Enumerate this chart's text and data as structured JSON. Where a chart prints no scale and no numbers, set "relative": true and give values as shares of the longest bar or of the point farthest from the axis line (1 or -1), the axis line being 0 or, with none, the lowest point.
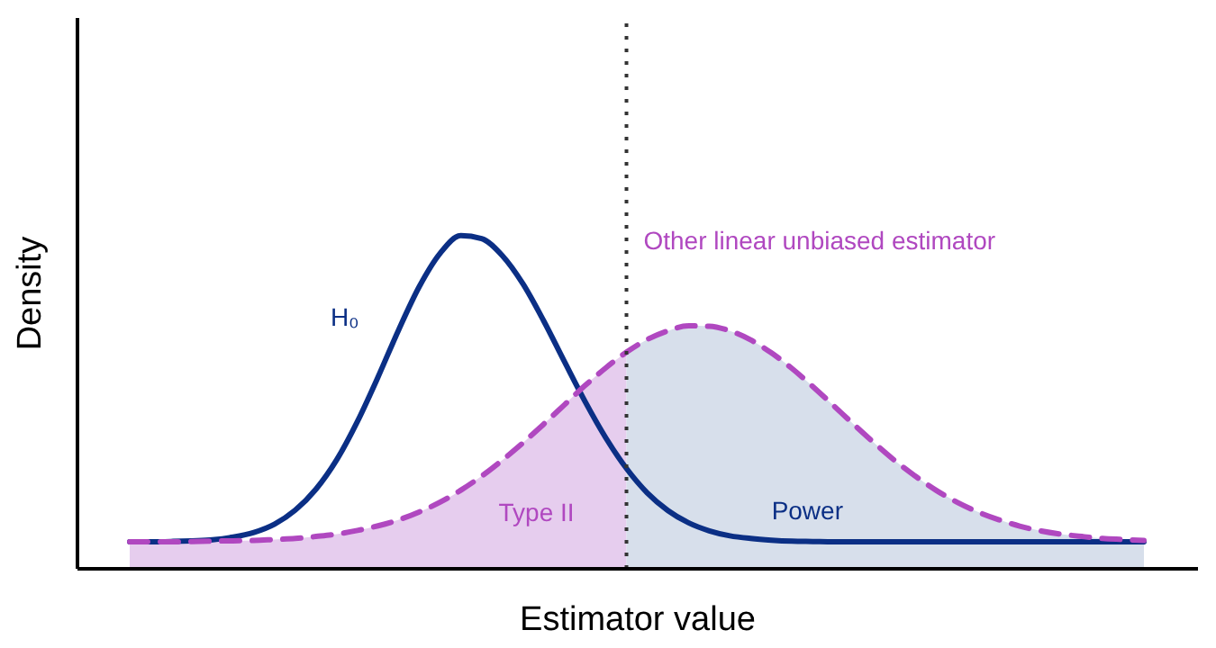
{
  "chart_data": {
    "type": "line",
    "xlabel": "Estimator value",
    "ylabel": "Density",
    "relative": true,
    "legend": false,
    "grid": false,
    "categories": [
      null,
      null,
      null,
      null,
      null,
      null,
      null,
      null,
      null,
      null,
      null,
      null,
      null,
      null,
      null,
      null,
      null,
      null,
      null,
      null,
      null,
      null,
      null,
      null,
      null,
      null,
      null,
      null,
      null,
      null,
      null,
      null,
      null,
      null,
      null,
      null,
      null,
      null,
      null,
      null,
      null,
      null,
      null,
      null,
      null,
      null,
      null,
      null,
      null,
      null
    ],
    "series": [
      {
        "name": "Type II",
        "type": "area",
        "color": "#e6cdee",
        "values": [
          0.081,
          0.081,
          0.081,
          0.082,
          0.083,
          0.084,
          0.085,
          0.088,
          0.091,
          0.097,
          0.104,
          0.115,
          0.129,
          0.147,
          0.171,
          0.2,
          0.236,
          0.278,
          0.326,
          0.378,
          0.434,
          0.492,
          0.55,
          0.603,
          0.65,
          null,
          null,
          null,
          null,
          null,
          null,
          null,
          null,
          null,
          null,
          null,
          null,
          null,
          null,
          null,
          null,
          null,
          null,
          null,
          null,
          null,
          null,
          null,
          null,
          null
        ]
      },
      {
        "name": "Power",
        "type": "area",
        "color": "#d7dfeb",
        "values": [
          null,
          null,
          null,
          null,
          null,
          null,
          null,
          null,
          null,
          null,
          null,
          null,
          null,
          null,
          null,
          null,
          null,
          null,
          null,
          null,
          null,
          null,
          null,
          null,
          0.65,
          0.688,
          0.714,
          0.729,
          0.728,
          0.714,
          0.687,
          0.648,
          0.601,
          0.547,
          0.49,
          0.432,
          0.376,
          0.323,
          0.276,
          0.234,
          0.199,
          0.17,
          0.147,
          0.128,
          0.114,
          0.104,
          0.097,
          0.091,
          0.088,
          0.085
        ]
      },
      {
        "name": "H₀",
        "color": "#0b2f85",
        "line_style": "solid",
        "values": [
          0.081,
          0.081,
          0.082,
          0.084,
          0.087,
          0.095,
          0.109,
          0.134,
          0.176,
          0.239,
          0.327,
          0.442,
          0.576,
          0.718,
          0.848,
          0.947,
          1,
          0.991,
          0.94,
          0.855,
          0.744,
          0.622,
          0.502,
          0.393,
          0.301,
          0.228,
          0.175,
          0.138,
          0.114,
          0.099,
          0.091,
          0.086,
          0.083,
          0.082,
          0.081,
          0.081,
          0.081,
          0.081,
          0.081,
          0.081,
          0.081,
          0.081,
          0.081,
          0.081,
          0.081,
          0.081,
          0.081,
          0.081,
          0.081,
          0.081
        ]
      },
      {
        "name": "Other linear unbiased estimator",
        "color": "#b048c0",
        "line_style": "dashed",
        "values": [
          0.081,
          0.081,
          0.081,
          0.082,
          0.083,
          0.084,
          0.085,
          0.088,
          0.091,
          0.097,
          0.104,
          0.115,
          0.129,
          0.147,
          0.171,
          0.2,
          0.236,
          0.278,
          0.326,
          0.378,
          0.434,
          0.492,
          0.55,
          0.603,
          0.65,
          0.688,
          0.714,
          0.729,
          0.728,
          0.714,
          0.687,
          0.648,
          0.601,
          0.547,
          0.49,
          0.432,
          0.376,
          0.323,
          0.276,
          0.234,
          0.199,
          0.17,
          0.147,
          0.128,
          0.114,
          0.104,
          0.097,
          0.091,
          0.088,
          0.085
        ]
      }
    ]
  }
}
